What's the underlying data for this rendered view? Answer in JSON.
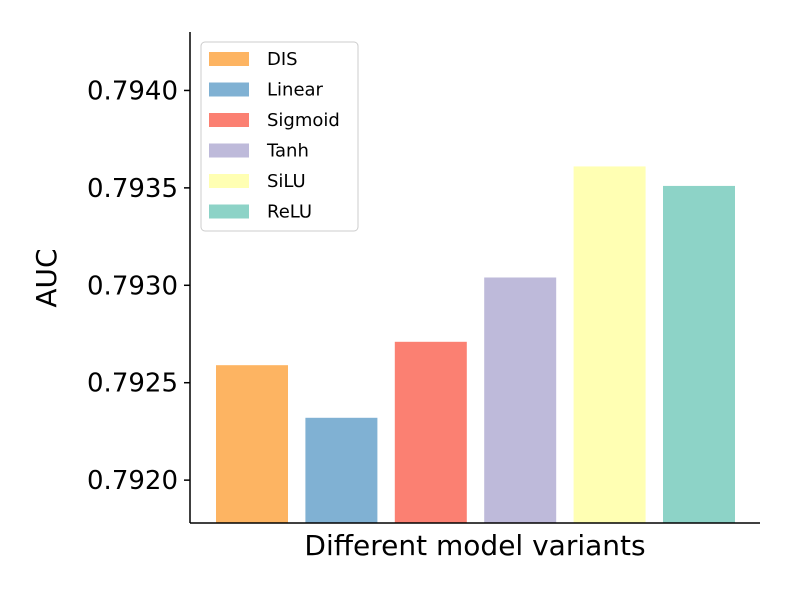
{
  "chart_data": {
    "type": "bar",
    "categories": [
      "DIS",
      "Linear",
      "Sigmoid",
      "Tanh",
      "SiLU",
      "ReLU"
    ],
    "values": [
      0.79259,
      0.79232,
      0.79271,
      0.79304,
      0.79361,
      0.79351
    ],
    "colors": [
      "#fdb462",
      "#80b1d3",
      "#fb8072",
      "#bebada",
      "#ffffb3",
      "#8dd3c7"
    ],
    "xlabel": "Different model variants",
    "ylabel": "AUC",
    "ylim": [
      0.79178,
      0.7943
    ],
    "yticks": [
      0.792,
      0.7925,
      0.793,
      0.7935,
      0.794
    ],
    "ytick_labels": [
      "0.7920",
      "0.7925",
      "0.7930",
      "0.7935",
      "0.7940"
    ],
    "grid": false,
    "legend": {
      "placement": "top-left",
      "entries": [
        "DIS",
        "Linear",
        "Sigmoid",
        "Tanh",
        "SiLU",
        "ReLU"
      ]
    }
  }
}
